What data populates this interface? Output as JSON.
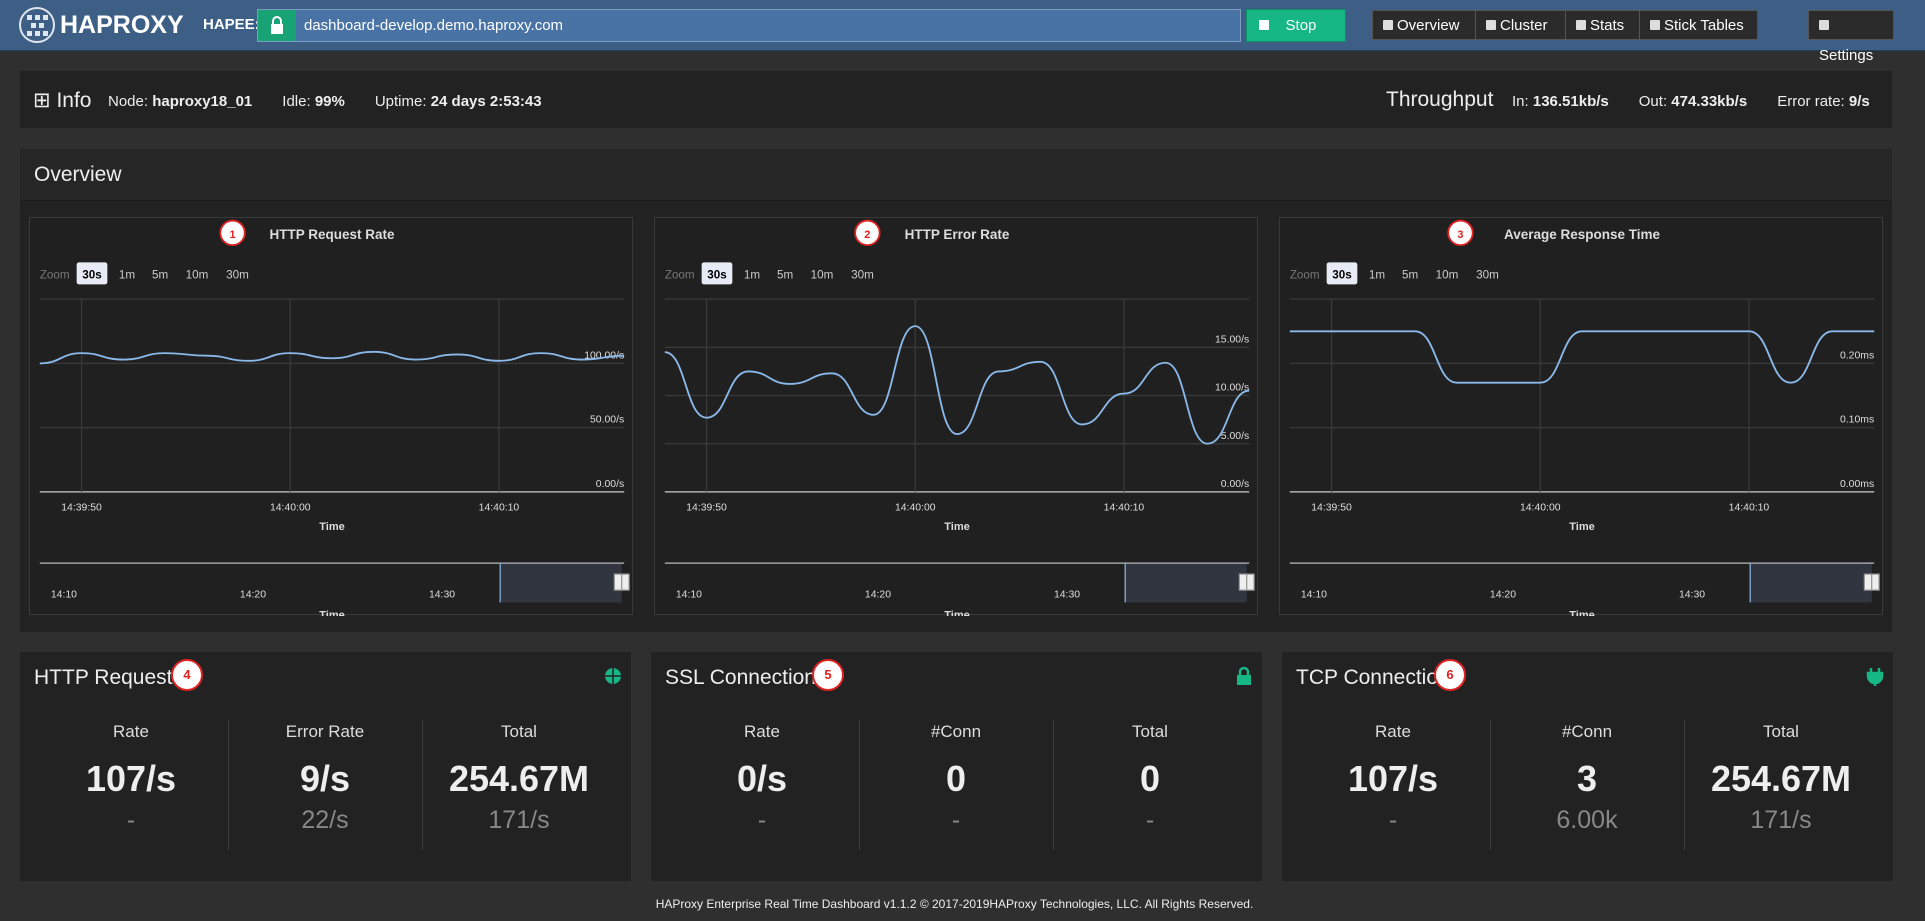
{
  "navbar": {
    "brand": "HAPROXY",
    "label": "HAPEE:",
    "url": "dashboard-develop.demo.haproxy.com",
    "stop": "Stop",
    "links": [
      "Overview",
      "Cluster",
      "Stats",
      "Stick Tables"
    ],
    "settings": "Settings"
  },
  "info": {
    "title": "Info",
    "fields": [
      {
        "label": "Node:",
        "value": "haproxy18_01"
      },
      {
        "label": "Idle:",
        "value": "99%"
      },
      {
        "label": "Uptime:",
        "value": "24 days 2:53:43"
      }
    ],
    "throughput": {
      "title": "Throughput",
      "fields": [
        {
          "label": "In:",
          "value": "136.51kb/s"
        },
        {
          "label": "Out:",
          "value": "474.33kb/s"
        },
        {
          "label": "Error rate:",
          "value": "9/s"
        }
      ]
    }
  },
  "overview": {
    "title": "Overview"
  },
  "zoom": {
    "label": "Zoom",
    "options": [
      "30s",
      "1m",
      "5m",
      "10m",
      "30m"
    ]
  },
  "chart_data": [
    {
      "type": "line",
      "title": "HTTP Request Rate",
      "marker": "1",
      "x_label": "Time",
      "categories": [
        null,
        "14:39:50",
        null,
        null,
        null,
        null,
        "14:40:00",
        null,
        null,
        null,
        null,
        "14:40:10",
        null,
        null,
        null
      ],
      "values": [
        100,
        108,
        103,
        108,
        106,
        102,
        108,
        104,
        109,
        103,
        107,
        102,
        108,
        103,
        106
      ],
      "color": "#8ab8e8",
      "ylim": [
        0,
        150
      ],
      "yticks": [
        {
          "value": 0,
          "label": "0.00/s"
        },
        {
          "value": 50,
          "label": "50.00/s"
        },
        {
          "value": 100,
          "label": "100.00/s"
        }
      ],
      "grid": true,
      "navigator_ticks": [
        "14:10",
        "14:20",
        "14:30"
      ]
    },
    {
      "type": "line",
      "title": "HTTP Error Rate",
      "marker": "2",
      "x_label": "Time",
      "categories": [
        null,
        "14:39:50",
        null,
        null,
        null,
        null,
        "14:40:00",
        null,
        null,
        null,
        null,
        "14:40:10",
        null,
        null,
        null
      ],
      "values": [
        14.5,
        7.7,
        12.5,
        11.2,
        12.3,
        8,
        17.2,
        6,
        12.5,
        13.5,
        7,
        10.2,
        13.4,
        5,
        10.5
      ],
      "color": "#8ab8e8",
      "ylim": [
        0,
        20
      ],
      "yticks": [
        {
          "value": 0,
          "label": "0.00/s"
        },
        {
          "value": 5,
          "label": "5.00/s"
        },
        {
          "value": 10,
          "label": "10.00/s"
        },
        {
          "value": 15,
          "label": "15.00/s"
        }
      ],
      "grid": true,
      "navigator_ticks": [
        "14:10",
        "14:20",
        "14:30"
      ]
    },
    {
      "type": "line",
      "title": "Average Response Time",
      "marker": "3",
      "x_label": "Time",
      "categories": [
        null,
        "14:39:50",
        null,
        null,
        null,
        null,
        "14:40:00",
        null,
        null,
        null,
        null,
        "14:40:10",
        null,
        null,
        null
      ],
      "values": [
        0.25,
        0.25,
        0.25,
        0.25,
        0.17,
        0.17,
        0.17,
        0.25,
        0.25,
        0.25,
        0.25,
        0.25,
        0.17,
        0.25,
        0.25
      ],
      "color": "#8ab8e8",
      "ylim": [
        0,
        0.3
      ],
      "yticks": [
        {
          "value": 0,
          "label": "0.00ms"
        },
        {
          "value": 0.1,
          "label": "0.10ms"
        },
        {
          "value": 0.2,
          "label": "0.20ms"
        }
      ],
      "grid": true,
      "navigator_ticks": [
        "14:10",
        "14:20",
        "14:30"
      ]
    }
  ],
  "panels": [
    {
      "title": "HTTP Requests",
      "marker": "4",
      "columns": [
        {
          "label": "Rate",
          "value": "107/s",
          "sub": "-"
        },
        {
          "label": "Error Rate",
          "value": "9/s",
          "sub": "22/s"
        },
        {
          "label": "Total",
          "value": "254.67M",
          "sub": "171/s"
        }
      ]
    },
    {
      "title": "SSL Connections",
      "marker": "5",
      "columns": [
        {
          "label": "Rate",
          "value": "0/s",
          "sub": "-"
        },
        {
          "label": "#Conn",
          "value": "0",
          "sub": "-"
        },
        {
          "label": "Total",
          "value": "0",
          "sub": "-"
        }
      ]
    },
    {
      "title": "TCP Connections",
      "marker": "6",
      "columns": [
        {
          "label": "Rate",
          "value": "107/s",
          "sub": "-"
        },
        {
          "label": "#Conn",
          "value": "3",
          "sub": "6.00k"
        },
        {
          "label": "Total",
          "value": "254.67M",
          "sub": "171/s"
        }
      ]
    }
  ],
  "footer": "HAProxy Enterprise Real Time Dashboard v1.1.2 © 2017-2019HAProxy Technologies, LLC. All Rights Reserved."
}
